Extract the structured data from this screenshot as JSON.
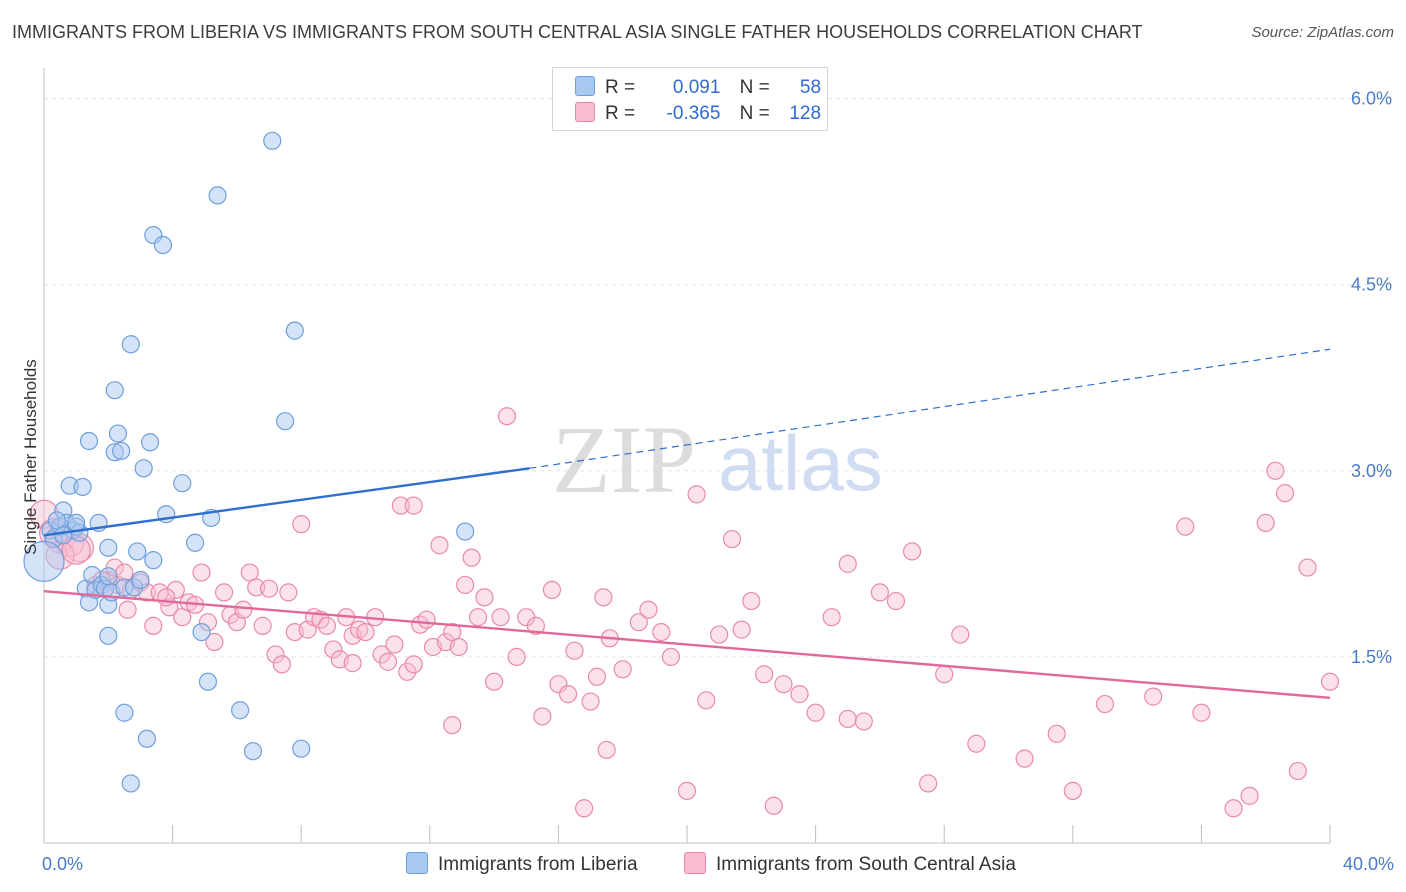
{
  "title": "IMMIGRANTS FROM LIBERIA VS IMMIGRANTS FROM SOUTH CENTRAL ASIA SINGLE FATHER HOUSEHOLDS CORRELATION CHART",
  "source": "Source: ZipAtlas.com",
  "watermark": {
    "zip": "ZIP",
    "atlas": "atlas"
  },
  "legend": {
    "rows": [
      {
        "r_label": "R =",
        "r_value": "0.091",
        "n_label": "N =",
        "n_value": "58"
      },
      {
        "r_label": "R =",
        "r_value": "-0.365",
        "n_label": "N =",
        "n_value": "128"
      }
    ]
  },
  "colors": {
    "liberia_fill": "#a9c8f0",
    "liberia_stroke": "#6f9fdc",
    "liberia_line": "#2f6fcf",
    "sca_fill": "#f7bcd0",
    "sca_stroke": "#e98aab",
    "sca_line": "#e0699a",
    "grid": "#e4e4e4",
    "tick_text": "#4a7bc8"
  },
  "chart_data": {
    "type": "scatter",
    "ylabel": "Single Father Households",
    "x_ticks": [
      "0.0%",
      "40.0%"
    ],
    "y_ticks": [
      "1.5%",
      "3.0%",
      "4.5%",
      "6.0%"
    ],
    "xlim": [
      0,
      40
    ],
    "ylim": [
      0,
      6.15
    ],
    "y_grid": [
      1.5,
      3.0,
      4.5,
      6.0
    ],
    "series": [
      {
        "name": "Immigrants from Liberia",
        "r": 0.091,
        "n": 58,
        "trend": {
          "x0": 0,
          "y0": 2.48,
          "x1": 15.1,
          "y1": 3.02,
          "dash_x1": 40,
          "dash_y1": 3.98
        },
        "points": [
          [
            0.2,
            2.52
          ],
          [
            0.3,
            2.45
          ],
          [
            0.5,
            2.55
          ],
          [
            0.6,
            2.68
          ],
          [
            0.7,
            2.58
          ],
          [
            0.8,
            2.88
          ],
          [
            0.9,
            2.52
          ],
          [
            1.0,
            2.55
          ],
          [
            1.1,
            2.5
          ],
          [
            1.2,
            2.87
          ],
          [
            1.3,
            2.05
          ],
          [
            1.4,
            1.94
          ],
          [
            1.4,
            3.24
          ],
          [
            1.5,
            2.16
          ],
          [
            1.6,
            2.04
          ],
          [
            1.7,
            2.58
          ],
          [
            1.8,
            2.08
          ],
          [
            1.9,
            2.05
          ],
          [
            2.0,
            2.38
          ],
          [
            2.0,
            2.15
          ],
          [
            2.0,
            1.92
          ],
          [
            2.0,
            1.67
          ],
          [
            2.1,
            2.02
          ],
          [
            2.2,
            3.15
          ],
          [
            2.2,
            3.65
          ],
          [
            2.3,
            3.3
          ],
          [
            2.4,
            3.16
          ],
          [
            2.5,
            2.06
          ],
          [
            2.5,
            1.05
          ],
          [
            2.7,
            4.02
          ],
          [
            2.7,
            0.48
          ],
          [
            2.8,
            2.06
          ],
          [
            2.9,
            2.35
          ],
          [
            3.0,
            2.12
          ],
          [
            3.1,
            3.02
          ],
          [
            3.2,
            0.84
          ],
          [
            3.3,
            3.23
          ],
          [
            3.4,
            2.28
          ],
          [
            3.4,
            4.9
          ],
          [
            3.7,
            4.82
          ],
          [
            3.8,
            2.65
          ],
          [
            4.3,
            2.9
          ],
          [
            4.7,
            2.42
          ],
          [
            4.9,
            1.7
          ],
          [
            5.1,
            1.3
          ],
          [
            5.2,
            2.62
          ],
          [
            5.4,
            5.22
          ],
          [
            6.1,
            1.07
          ],
          [
            6.5,
            0.74
          ],
          [
            7.1,
            5.66
          ],
          [
            7.5,
            3.4
          ],
          [
            7.8,
            4.13
          ],
          [
            8.0,
            0.76
          ],
          [
            13.1,
            2.51
          ],
          [
            0.4,
            2.6
          ],
          [
            0.6,
            2.48
          ],
          [
            0.0,
            2.27
          ],
          [
            1.0,
            2.58
          ]
        ]
      },
      {
        "name": "Immigrants from South Central Asia",
        "r": -0.365,
        "n": 128,
        "trend": {
          "x0": 0,
          "y0": 2.03,
          "x1": 40,
          "y1": 1.17
        },
        "points": [
          [
            0.0,
            2.65
          ],
          [
            0.3,
            2.5
          ],
          [
            0.5,
            2.45
          ],
          [
            0.8,
            2.42
          ],
          [
            1.1,
            2.38
          ],
          [
            1.6,
            2.08
          ],
          [
            2.0,
            2.12
          ],
          [
            2.2,
            2.22
          ],
          [
            2.3,
            2.08
          ],
          [
            2.5,
            2.18
          ],
          [
            2.6,
            1.88
          ],
          [
            2.7,
            2.04
          ],
          [
            3.0,
            2.1
          ],
          [
            3.2,
            2.02
          ],
          [
            3.4,
            1.75
          ],
          [
            3.6,
            2.02
          ],
          [
            3.9,
            1.9
          ],
          [
            4.1,
            2.04
          ],
          [
            4.3,
            1.82
          ],
          [
            4.5,
            1.94
          ],
          [
            4.7,
            1.92
          ],
          [
            4.9,
            2.18
          ],
          [
            5.1,
            1.78
          ],
          [
            5.3,
            1.62
          ],
          [
            5.6,
            2.02
          ],
          [
            5.8,
            1.84
          ],
          [
            6.0,
            1.78
          ],
          [
            6.2,
            1.88
          ],
          [
            6.4,
            2.18
          ],
          [
            6.6,
            2.06
          ],
          [
            6.8,
            1.75
          ],
          [
            7.0,
            2.05
          ],
          [
            7.2,
            1.52
          ],
          [
            7.4,
            1.44
          ],
          [
            7.6,
            2.02
          ],
          [
            7.8,
            1.7
          ],
          [
            8.0,
            2.57
          ],
          [
            8.2,
            1.72
          ],
          [
            8.4,
            1.82
          ],
          [
            8.6,
            1.8
          ],
          [
            8.8,
            1.75
          ],
          [
            9.0,
            1.56
          ],
          [
            9.2,
            1.48
          ],
          [
            9.4,
            1.82
          ],
          [
            9.6,
            1.67
          ],
          [
            9.8,
            1.72
          ],
          [
            10.0,
            1.7
          ],
          [
            10.3,
            1.82
          ],
          [
            10.5,
            1.52
          ],
          [
            10.7,
            1.46
          ],
          [
            10.9,
            1.6
          ],
          [
            11.1,
            2.72
          ],
          [
            11.3,
            1.38
          ],
          [
            11.5,
            1.44
          ],
          [
            11.7,
            1.76
          ],
          [
            11.9,
            1.8
          ],
          [
            12.1,
            1.58
          ],
          [
            12.3,
            2.4
          ],
          [
            12.5,
            1.62
          ],
          [
            12.7,
            1.7
          ],
          [
            12.9,
            1.58
          ],
          [
            13.1,
            2.08
          ],
          [
            13.3,
            2.3
          ],
          [
            13.5,
            1.82
          ],
          [
            13.7,
            1.98
          ],
          [
            14.0,
            1.3
          ],
          [
            14.2,
            1.82
          ],
          [
            14.4,
            3.44
          ],
          [
            14.7,
            1.5
          ],
          [
            15.0,
            1.82
          ],
          [
            15.3,
            1.75
          ],
          [
            15.5,
            1.02
          ],
          [
            15.8,
            2.04
          ],
          [
            16.0,
            1.28
          ],
          [
            16.3,
            1.2
          ],
          [
            16.5,
            1.55
          ],
          [
            16.8,
            0.28
          ],
          [
            17.0,
            1.14
          ],
          [
            17.2,
            1.34
          ],
          [
            17.4,
            1.98
          ],
          [
            17.6,
            1.65
          ],
          [
            18.0,
            1.4
          ],
          [
            18.5,
            1.78
          ],
          [
            18.8,
            1.88
          ],
          [
            19.2,
            1.7
          ],
          [
            19.5,
            1.5
          ],
          [
            20.0,
            0.42
          ],
          [
            20.3,
            2.81
          ],
          [
            20.6,
            1.15
          ],
          [
            21.0,
            1.68
          ],
          [
            21.4,
            2.45
          ],
          [
            21.7,
            1.72
          ],
          [
            22.0,
            1.95
          ],
          [
            22.4,
            1.36
          ],
          [
            22.7,
            0.3
          ],
          [
            23.0,
            1.28
          ],
          [
            23.5,
            1.2
          ],
          [
            24.0,
            1.05
          ],
          [
            24.5,
            1.82
          ],
          [
            25.0,
            1.0
          ],
          [
            25.5,
            0.98
          ],
          [
            26.0,
            2.02
          ],
          [
            26.5,
            1.95
          ],
          [
            27.0,
            2.35
          ],
          [
            27.5,
            0.48
          ],
          [
            28.0,
            1.36
          ],
          [
            28.5,
            1.68
          ],
          [
            29.0,
            0.8
          ],
          [
            30.5,
            0.68
          ],
          [
            31.5,
            0.88
          ],
          [
            32.0,
            0.42
          ],
          [
            33.0,
            1.12
          ],
          [
            34.5,
            1.18
          ],
          [
            35.5,
            2.55
          ],
          [
            36.0,
            1.05
          ],
          [
            37.0,
            0.28
          ],
          [
            37.5,
            0.38
          ],
          [
            38.0,
            2.58
          ],
          [
            38.3,
            3.0
          ],
          [
            38.6,
            2.82
          ],
          [
            39.0,
            0.58
          ],
          [
            39.3,
            2.22
          ],
          [
            40.0,
            1.3
          ],
          [
            0.5,
            2.32
          ],
          [
            1.0,
            2.36
          ],
          [
            1.8,
            2.12
          ],
          [
            3.8,
            1.98
          ],
          [
            9.6,
            1.45
          ],
          [
            11.5,
            2.72
          ],
          [
            25.0,
            2.25
          ],
          [
            17.5,
            0.75
          ],
          [
            12.7,
            0.95
          ]
        ]
      }
    ],
    "legend_labels": [
      "Immigrants from Liberia",
      "Immigrants from South Central Asia"
    ]
  }
}
